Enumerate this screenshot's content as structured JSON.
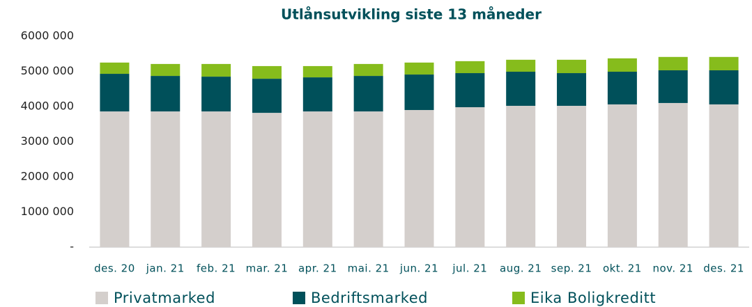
{
  "chart_data": {
    "type": "stacked_bar",
    "title": "Utlånsutvikling siste 13 måneder",
    "categories": [
      "des. 20",
      "jan. 21",
      "feb. 21",
      "mar. 21",
      "apr. 21",
      "mai. 21",
      "jun. 21",
      "jul. 21",
      "aug. 21",
      "sep. 21",
      "okt. 21",
      "nov. 21",
      "des. 21"
    ],
    "series": [
      {
        "name": "Privatmarked",
        "color": "#d4cfcc",
        "values": [
          3860000,
          3860000,
          3860000,
          3820000,
          3860000,
          3860000,
          3900000,
          3980000,
          4020000,
          4020000,
          4060000,
          4100000,
          4060000
        ]
      },
      {
        "name": "Bedriftsmarked",
        "color": "#00505a",
        "values": [
          1070000,
          1010000,
          990000,
          970000,
          970000,
          1010000,
          1010000,
          970000,
          970000,
          930000,
          930000,
          930000,
          970000
        ]
      },
      {
        "name": "Eika Boligkreditt",
        "color": "#86bc1c",
        "values": [
          320000,
          340000,
          360000,
          360000,
          320000,
          340000,
          340000,
          340000,
          340000,
          380000,
          380000,
          380000,
          380000
        ]
      }
    ],
    "ylim": [
      0,
      6000000
    ],
    "yticks": [
      {
        "value": 0,
        "label": "-"
      },
      {
        "value": 1000000,
        "label": "1000 000"
      },
      {
        "value": 2000000,
        "label": "2000 000"
      },
      {
        "value": 3000000,
        "label": "3000 000"
      },
      {
        "value": 4000000,
        "label": "4000 000"
      },
      {
        "value": 5000000,
        "label": "5000 000"
      },
      {
        "value": 6000000,
        "label": "6000 000"
      }
    ],
    "grid": false,
    "legend": "bottom"
  }
}
